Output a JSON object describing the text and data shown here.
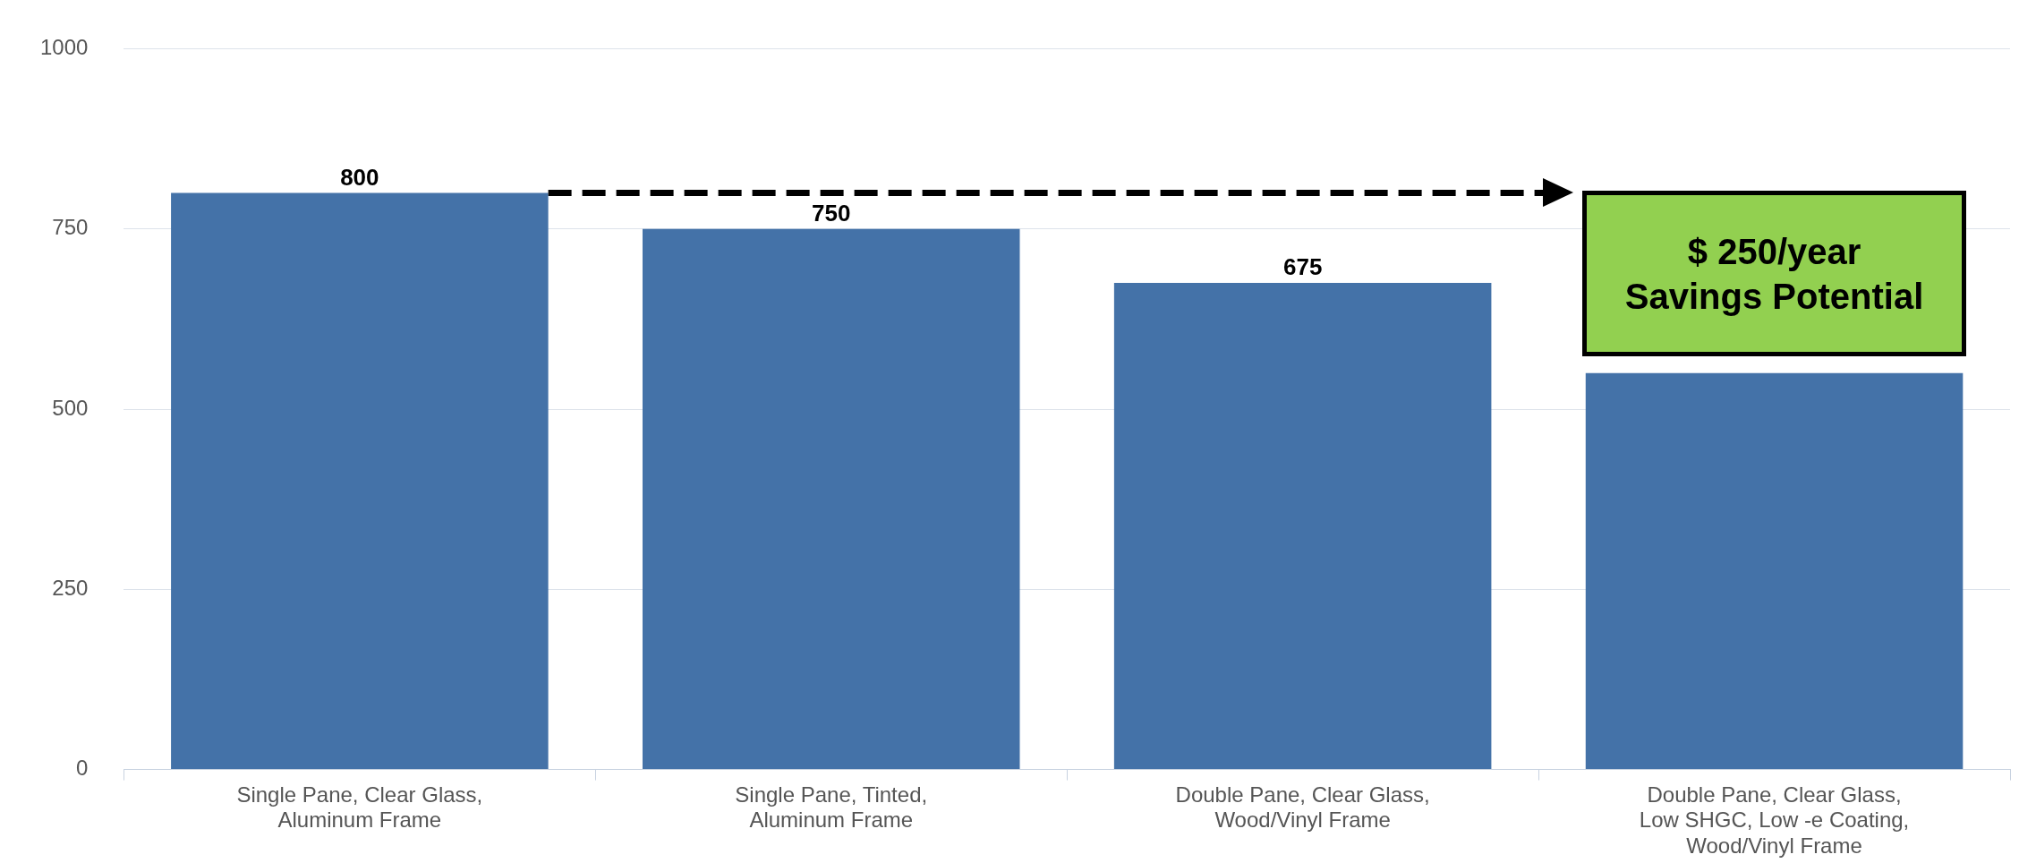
{
  "chart_data": {
    "type": "bar",
    "categories": [
      "Single Pane, Clear Glass, Aluminum Frame",
      "Single Pane, Tinted, Aluminum Frame",
      "Double Pane, Clear Glass, Wood/Vinyl Frame",
      "Double Pane, Clear Glass, Low SHGC, Low -e Coating, Wood/Vinyl Frame"
    ],
    "values": [
      800,
      750,
      675,
      550
    ],
    "value_labels": [
      "800",
      "750",
      "675",
      null
    ],
    "color": "#4472a8",
    "ref_lines": [
      {
        "axis": "y",
        "value": 800,
        "color": "#000000",
        "line_style": "dashed"
      }
    ],
    "ylim": [
      0,
      1000
    ],
    "yticks": [
      0,
      250,
      500,
      750,
      1000
    ],
    "grid": "y",
    "legend": false,
    "annotations": [
      "$ 250/year\nSavings Potential"
    ]
  }
}
